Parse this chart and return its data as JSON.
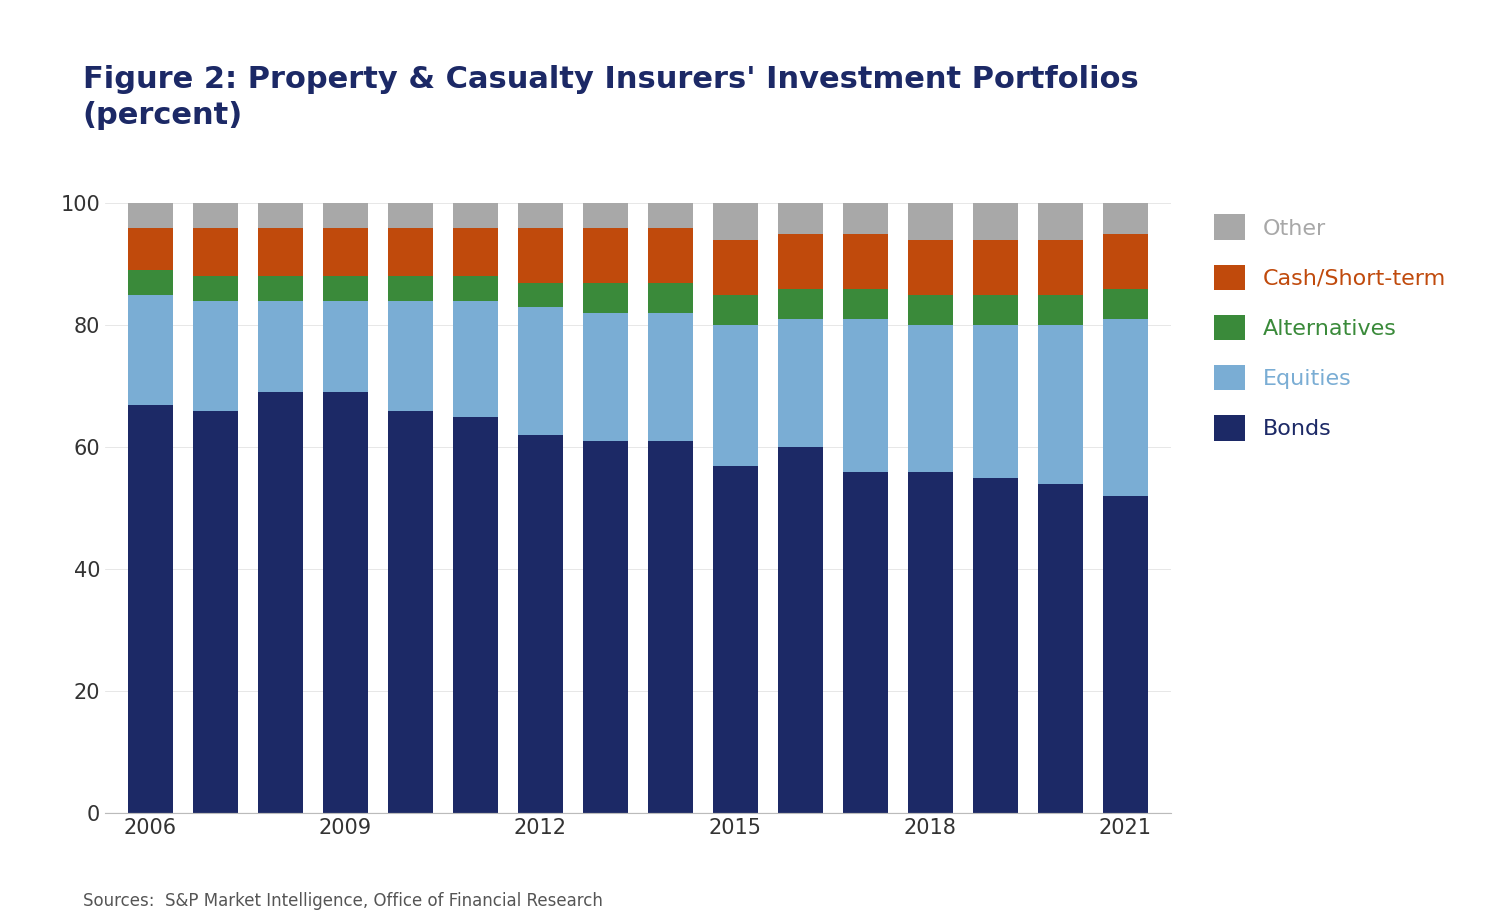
{
  "title": "Figure 2: Property & Casualty Insurers' Investment Portfolios\n(percent)",
  "years": [
    2006,
    2007,
    2008,
    2009,
    2010,
    2011,
    2012,
    2013,
    2014,
    2015,
    2016,
    2017,
    2018,
    2019,
    2020,
    2021
  ],
  "bonds": [
    67,
    66,
    69,
    69,
    66,
    65,
    62,
    61,
    61,
    57,
    60,
    56,
    56,
    55,
    54,
    52
  ],
  "equities": [
    18,
    18,
    15,
    15,
    18,
    19,
    21,
    21,
    21,
    23,
    21,
    25,
    24,
    25,
    26,
    29
  ],
  "alternatives": [
    4,
    4,
    4,
    4,
    4,
    4,
    4,
    5,
    5,
    5,
    5,
    5,
    5,
    5,
    5,
    5
  ],
  "cash": [
    7,
    8,
    8,
    8,
    8,
    8,
    9,
    9,
    9,
    9,
    9,
    9,
    9,
    9,
    9,
    9
  ],
  "other": [
    4,
    4,
    4,
    4,
    4,
    4,
    4,
    4,
    4,
    6,
    5,
    5,
    6,
    6,
    6,
    5
  ],
  "bonds_color": "#1c2966",
  "equities_color": "#7aadd4",
  "alternatives_color": "#3a8a3a",
  "cash_color": "#c04a0c",
  "other_color": "#a8a8a8",
  "bonds_label": "Bonds",
  "equities_label": "Equities",
  "alternatives_label": "Alternatives",
  "cash_label": "Cash/Short-term",
  "other_label": "Other",
  "source_text": "Sources:  S&P Market Intelligence, Office of Financial Research",
  "ylim": [
    0,
    100
  ],
  "yticks": [
    0,
    20,
    40,
    60,
    80,
    100
  ],
  "background_color": "#ffffff",
  "title_color": "#1c2966",
  "title_fontsize": 22,
  "bar_width": 0.7,
  "tick_years": [
    2006,
    2009,
    2012,
    2015,
    2018,
    2021
  ]
}
